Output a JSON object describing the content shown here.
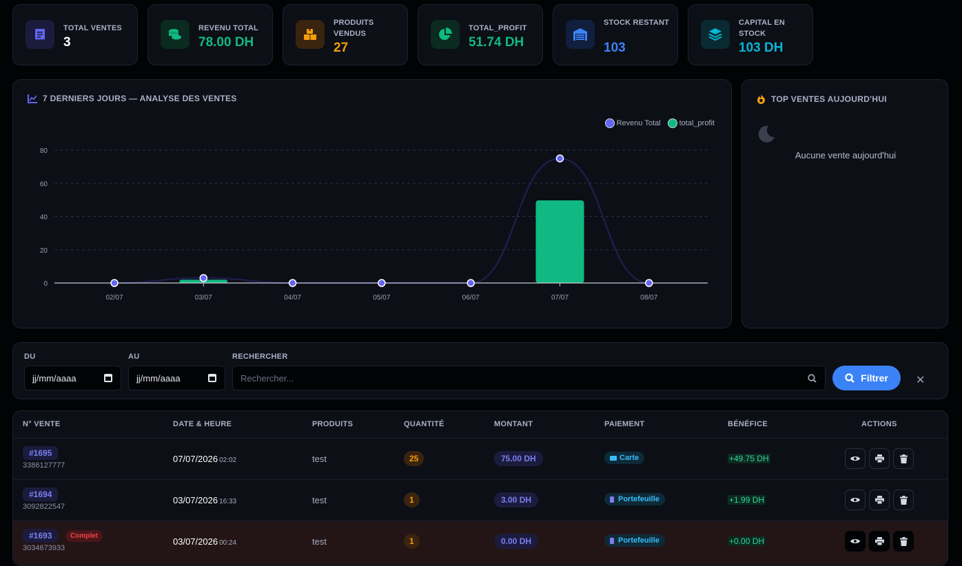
{
  "kpis": [
    {
      "label": "TOTAL VENTES",
      "value": "3",
      "icon": "receipt-icon",
      "color": "#ffffff",
      "icon_color": "#6366f1",
      "icon_bg": "#1b1c3d"
    },
    {
      "label": "REVENU TOTAL",
      "value": "78.00 DH",
      "icon": "coins-icon",
      "color": "#10b981",
      "icon_color": "#10b981",
      "icon_bg": "#0b2a20"
    },
    {
      "label": "PRODUITS VENDUS",
      "value": "27",
      "icon": "boxes-icon",
      "color": "#f59e0b",
      "icon_color": "#f59e0b",
      "icon_bg": "#3a2410"
    },
    {
      "label": "TOTAL_PROFIT",
      "value": "51.74 DH",
      "icon": "pie-chart-icon",
      "color": "#10b981",
      "icon_color": "#10b981",
      "icon_bg": "#0b2a20"
    },
    {
      "label": "STOCK RESTANT",
      "value": "103",
      "icon": "warehouse-icon",
      "color": "#3b82f6",
      "icon_color": "#3b82f6",
      "icon_bg": "#0f1f3d"
    },
    {
      "label": "CAPITAL EN STOCK",
      "value": "103 DH",
      "icon": "layers-icon",
      "color": "#06b6d4",
      "icon_color": "#06b6d4",
      "icon_bg": "#0a2a32"
    }
  ],
  "chart_panel": {
    "title": "7 DERNIERS JOURS — ANALYSE DES VENTES"
  },
  "chart_data": {
    "type": "bar",
    "title": "7 DERNIERS JOURS — ANALYSE DES VENTES",
    "categories": [
      "02/07",
      "03/07",
      "04/07",
      "05/07",
      "06/07",
      "07/07",
      "08/07"
    ],
    "series": [
      {
        "name": "Revenu Total",
        "kind": "line",
        "color": "#6366f1",
        "values": [
          0,
          3,
          0,
          0,
          0,
          75,
          0
        ]
      },
      {
        "name": "total_profit",
        "kind": "bar",
        "color": "#10b981",
        "values": [
          0,
          1.99,
          0,
          0,
          0,
          49.75,
          0
        ]
      }
    ],
    "yticks": [
      0,
      20,
      40,
      60,
      80
    ],
    "ylim": [
      0,
      80
    ],
    "legend": "top-right",
    "grid": true
  },
  "top_panel": {
    "title": "TOP VENTES AUJOURD'HUI",
    "empty_text": "Aucune vente aujourd'hui"
  },
  "filters": {
    "from_label": "DU",
    "from_value": "jj/mm/aaaa",
    "to_label": "AU",
    "to_value": "jj/mm/aaaa",
    "search_label": "RECHERCHER",
    "search_placeholder": "Rechercher...",
    "filter_button": "Filtrer",
    "clear_symbol": "✕"
  },
  "table": {
    "headers": [
      "N° VENTE",
      "DATE & HEURE",
      "PRODUITS",
      "QUANTITÉ",
      "MONTANT",
      "PAIEMENT",
      "BÉNÉFICE",
      "ACTIONS"
    ],
    "rows": [
      {
        "id": "#1695",
        "code": "3386127777",
        "status": "",
        "date": "07/07/2026",
        "time": "02:02",
        "product": "test",
        "qty": "25",
        "amount": "75.00 DH",
        "payment": "Carte",
        "payment_icon": "card-icon",
        "profit": "+49.75 DH",
        "highlight": false
      },
      {
        "id": "#1694",
        "code": "3092822547",
        "status": "",
        "date": "03/07/2026",
        "time": "16:33",
        "product": "test",
        "qty": "1",
        "amount": "3.00 DH",
        "payment": "Portefeuille",
        "payment_icon": "wallet-icon",
        "profit": "+1.99 DH",
        "highlight": false
      },
      {
        "id": "#1693",
        "code": "3034673933",
        "status": "Complet",
        "date": "03/07/2026",
        "time": "00:24",
        "product": "test",
        "qty": "1",
        "amount": "0.00 DH",
        "payment": "Portefeuille",
        "payment_icon": "wallet-icon",
        "profit": "+0.00 DH",
        "highlight": true
      }
    ]
  }
}
